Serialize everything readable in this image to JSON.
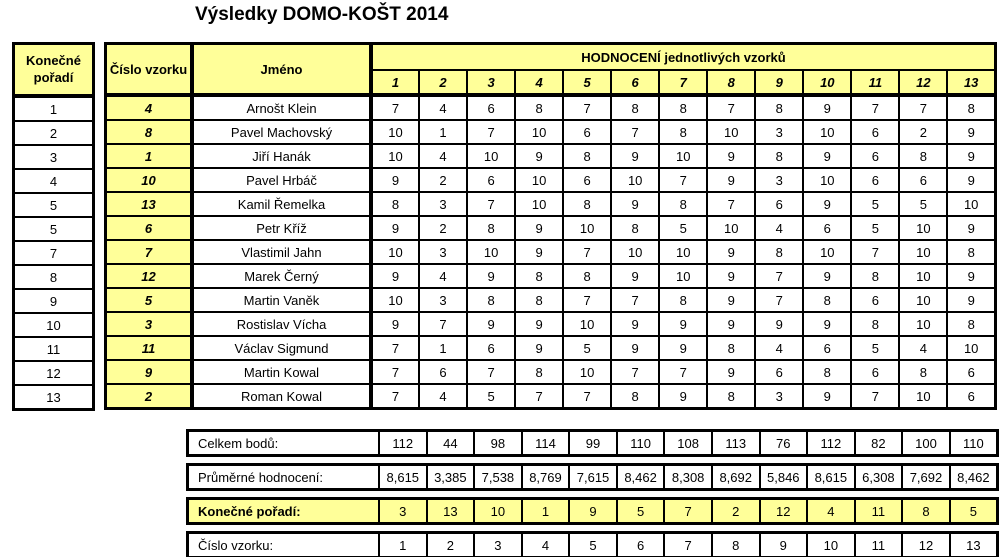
{
  "title": "Výsledky DOMO-KOŠT 2014",
  "colors": {
    "highlight_yellow": "#FFFF99",
    "border_black": "#000000",
    "background_white": "#FFFFFF"
  },
  "headers": {
    "final_rank": "Konečné pořadí",
    "sample_number": "Číslo vzorku",
    "name": "Jméno",
    "evaluation": "HODNOCENÍ jednotlivých vzorků",
    "sample_columns": [
      "1",
      "2",
      "3",
      "4",
      "5",
      "6",
      "7",
      "8",
      "9",
      "10",
      "11",
      "12",
      "13"
    ]
  },
  "rows": [
    {
      "final_rank": "1",
      "sample_number": "4",
      "name": "Arnošt Klein",
      "scores": [
        "7",
        "4",
        "6",
        "8",
        "7",
        "8",
        "8",
        "7",
        "8",
        "9",
        "7",
        "7",
        "8"
      ]
    },
    {
      "final_rank": "2",
      "sample_number": "8",
      "name": "Pavel Machovský",
      "scores": [
        "10",
        "1",
        "7",
        "10",
        "6",
        "7",
        "8",
        "10",
        "3",
        "10",
        "6",
        "2",
        "9"
      ]
    },
    {
      "final_rank": "3",
      "sample_number": "1",
      "name": "Jiří Hanák",
      "scores": [
        "10",
        "4",
        "10",
        "9",
        "8",
        "9",
        "10",
        "9",
        "8",
        "9",
        "6",
        "8",
        "9"
      ]
    },
    {
      "final_rank": "4",
      "sample_number": "10",
      "name": "Pavel Hrbáč",
      "scores": [
        "9",
        "2",
        "6",
        "10",
        "6",
        "10",
        "7",
        "9",
        "3",
        "10",
        "6",
        "6",
        "9"
      ]
    },
    {
      "final_rank": "5",
      "sample_number": "13",
      "name": "Kamil Řemelka",
      "scores": [
        "8",
        "3",
        "7",
        "10",
        "8",
        "9",
        "8",
        "7",
        "6",
        "9",
        "5",
        "5",
        "10"
      ]
    },
    {
      "final_rank": "5",
      "sample_number": "6",
      "name": "Petr Kříž",
      "scores": [
        "9",
        "2",
        "8",
        "9",
        "10",
        "8",
        "5",
        "10",
        "4",
        "6",
        "5",
        "10",
        "9"
      ]
    },
    {
      "final_rank": "7",
      "sample_number": "7",
      "name": "Vlastimil Jahn",
      "scores": [
        "10",
        "3",
        "10",
        "9",
        "7",
        "10",
        "10",
        "9",
        "8",
        "10",
        "7",
        "10",
        "8"
      ]
    },
    {
      "final_rank": "8",
      "sample_number": "12",
      "name": "Marek Černý",
      "scores": [
        "9",
        "4",
        "9",
        "8",
        "8",
        "9",
        "10",
        "9",
        "7",
        "9",
        "8",
        "10",
        "9"
      ]
    },
    {
      "final_rank": "9",
      "sample_number": "5",
      "name": "Martin Vaněk",
      "scores": [
        "10",
        "3",
        "8",
        "8",
        "7",
        "7",
        "8",
        "9",
        "7",
        "8",
        "6",
        "10",
        "9"
      ]
    },
    {
      "final_rank": "10",
      "sample_number": "3",
      "name": "Rostislav Vícha",
      "scores": [
        "9",
        "7",
        "9",
        "9",
        "10",
        "9",
        "9",
        "9",
        "9",
        "9",
        "8",
        "10",
        "8"
      ]
    },
    {
      "final_rank": "11",
      "sample_number": "11",
      "name": "Václav Sigmund",
      "scores": [
        "7",
        "1",
        "6",
        "9",
        "5",
        "9",
        "9",
        "8",
        "4",
        "6",
        "5",
        "4",
        "10"
      ]
    },
    {
      "final_rank": "12",
      "sample_number": "9",
      "name": "Martin Kowal",
      "scores": [
        "7",
        "6",
        "7",
        "8",
        "10",
        "7",
        "7",
        "9",
        "6",
        "8",
        "6",
        "8",
        "6"
      ]
    },
    {
      "final_rank": "13",
      "sample_number": "2",
      "name": "Roman Kowal",
      "scores": [
        "7",
        "4",
        "5",
        "7",
        "7",
        "8",
        "9",
        "8",
        "3",
        "9",
        "7",
        "10",
        "6"
      ]
    }
  ],
  "summary": [
    {
      "id": "total-points",
      "label": "Celkem bodů:",
      "highlight": false,
      "values": [
        "112",
        "44",
        "98",
        "114",
        "99",
        "110",
        "108",
        "113",
        "76",
        "112",
        "82",
        "100",
        "110"
      ]
    },
    {
      "id": "average-rating",
      "label": "Průměrné hodnocení:",
      "highlight": false,
      "values": [
        "8,615",
        "3,385",
        "7,538",
        "8,769",
        "7,615",
        "8,462",
        "8,308",
        "8,692",
        "5,846",
        "8,615",
        "6,308",
        "7,692",
        "8,462"
      ]
    },
    {
      "id": "final-rank",
      "label": "Konečné pořadí:",
      "highlight": true,
      "values": [
        "3",
        "13",
        "10",
        "1",
        "9",
        "5",
        "7",
        "2",
        "12",
        "4",
        "11",
        "8",
        "5"
      ]
    },
    {
      "id": "sample-number",
      "label": "Číslo vzorku:",
      "highlight": false,
      "values": [
        "1",
        "2",
        "3",
        "4",
        "5",
        "6",
        "7",
        "8",
        "9",
        "10",
        "11",
        "12",
        "13"
      ]
    }
  ]
}
